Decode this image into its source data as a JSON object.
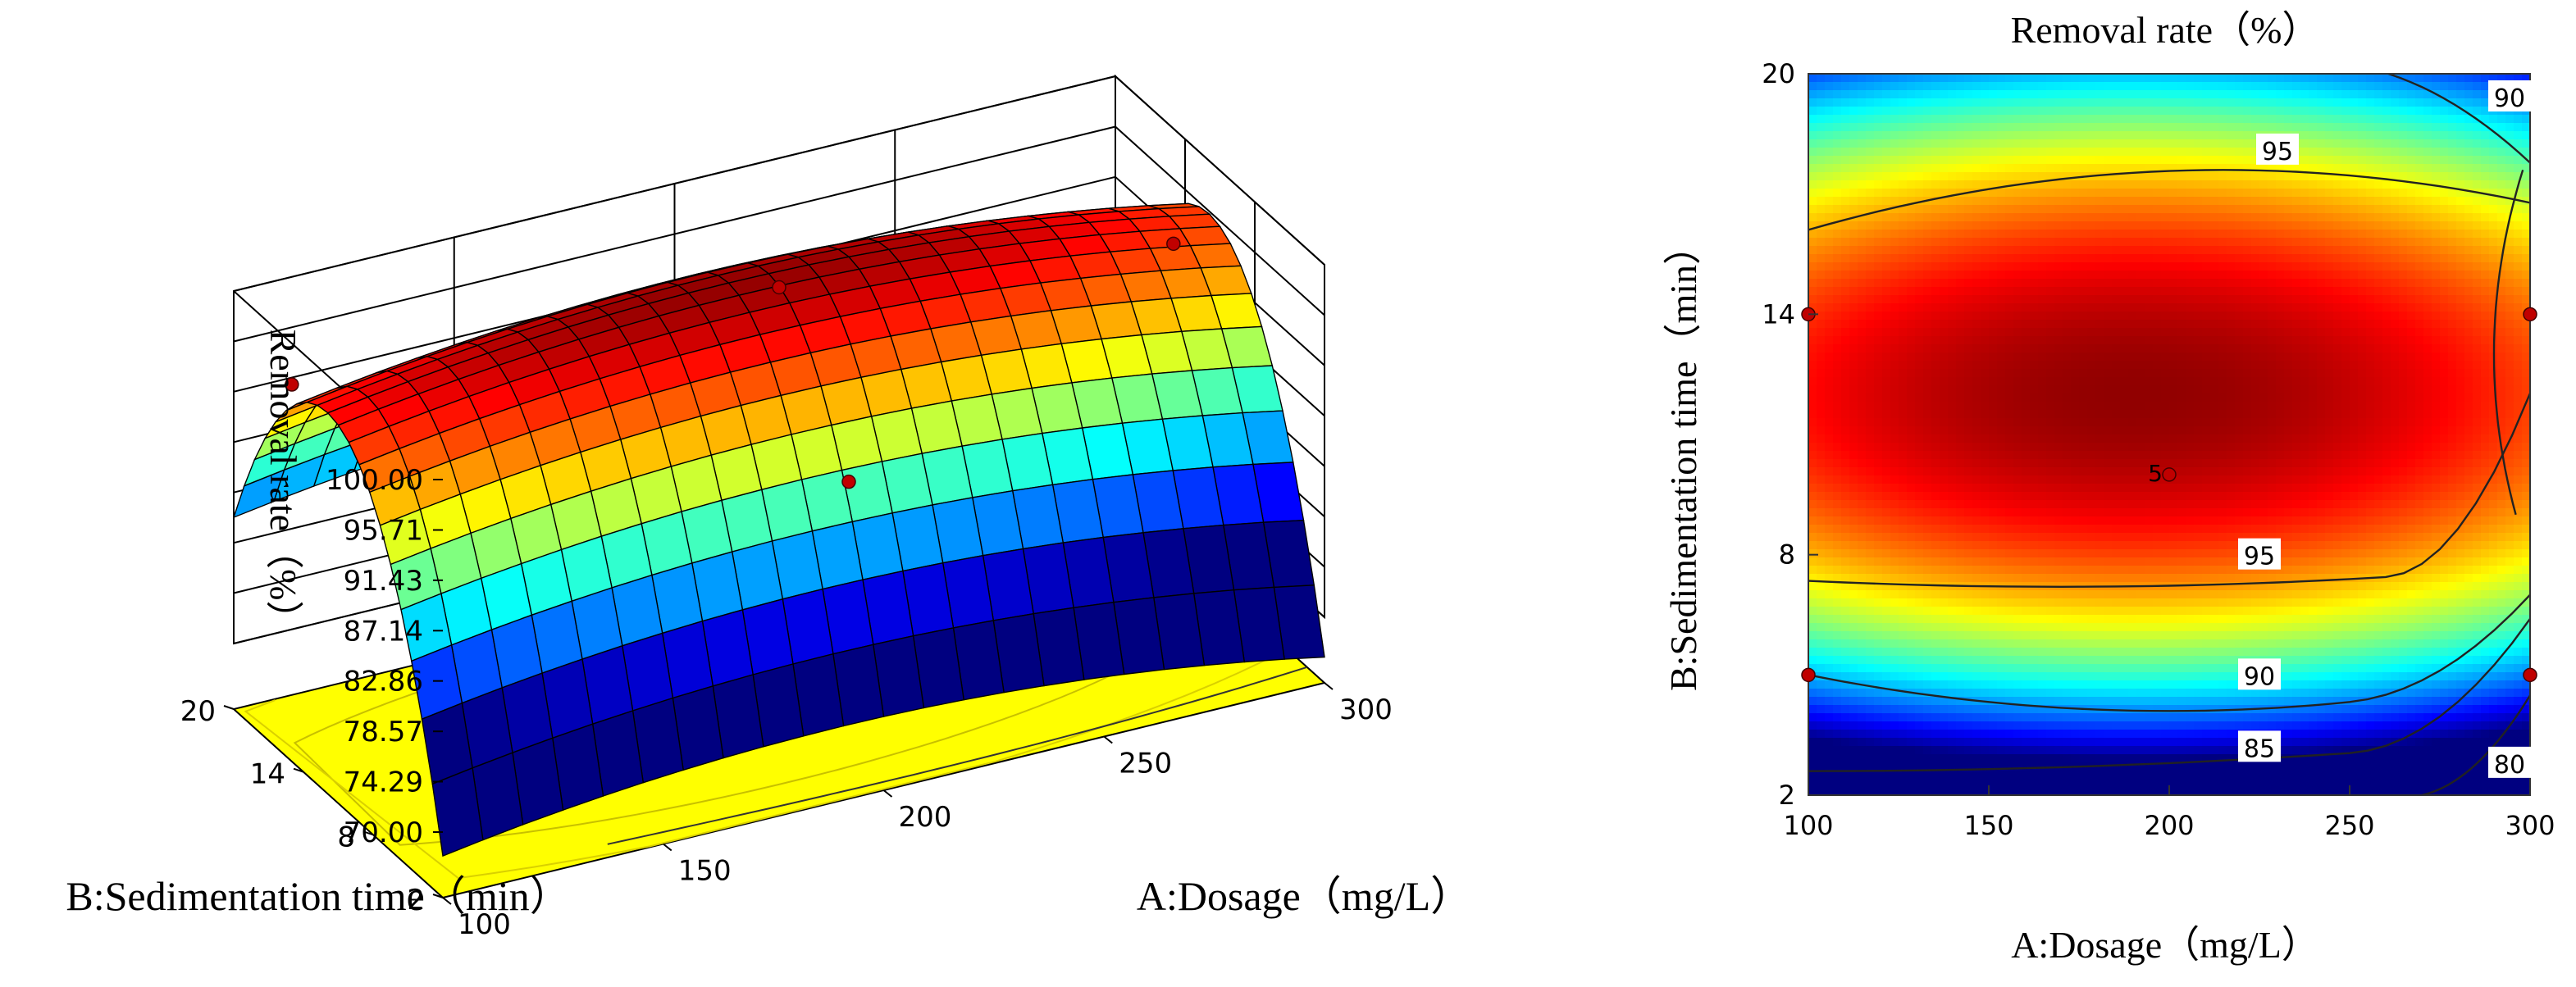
{
  "chart_data": [
    {
      "type": "surface3d",
      "zlabel": "Removal rate（%）",
      "xlabel": "A:Dosage（mg/L）",
      "ylabel": "B:Sedimentation time（min）",
      "z_ticks": [
        "100.00",
        "95.71",
        "91.43",
        "87.14",
        "82.86",
        "78.57",
        "74.29",
        "70.00"
      ],
      "zlim": [
        70,
        100
      ],
      "x_ticks": [
        "100",
        "150",
        "200",
        "250",
        "300"
      ],
      "xlim": [
        100,
        300
      ],
      "y_ticks": [
        "2",
        "8",
        "14",
        "20"
      ],
      "ylim": [
        2,
        20
      ],
      "design_points": [
        {
          "A": 100,
          "B": 15,
          "R": 96.5
        },
        {
          "A": 200,
          "B": 11,
          "R": 99.2
        },
        {
          "A": 300,
          "B": 15,
          "R": 90.2
        },
        {
          "A": 200,
          "B": 5,
          "R": 88.0
        }
      ],
      "colors": {
        "floor": "#ffff00",
        "contour": "#00c8d0"
      }
    },
    {
      "type": "contour",
      "title": "Removal rate（%）",
      "xlabel": "A:Dosage（mg/L）",
      "ylabel": "B:Sedimentation time（min）",
      "x_ticks": [
        "100",
        "150",
        "200",
        "250",
        "300"
      ],
      "xlim": [
        100,
        300
      ],
      "y_ticks": [
        "2",
        "8",
        "14",
        "20"
      ],
      "ylim": [
        2,
        20
      ],
      "contour_labels": [
        "95",
        "95",
        "90",
        "90",
        "85",
        "80"
      ],
      "center_point": {
        "A": 200,
        "B": 10,
        "label": "5"
      },
      "design_points": [
        {
          "A": 100,
          "B": 14
        },
        {
          "A": 100,
          "B": 5
        },
        {
          "A": 300,
          "B": 14
        },
        {
          "A": 300,
          "B": 5
        },
        {
          "A": 200,
          "B": 10
        }
      ]
    }
  ]
}
